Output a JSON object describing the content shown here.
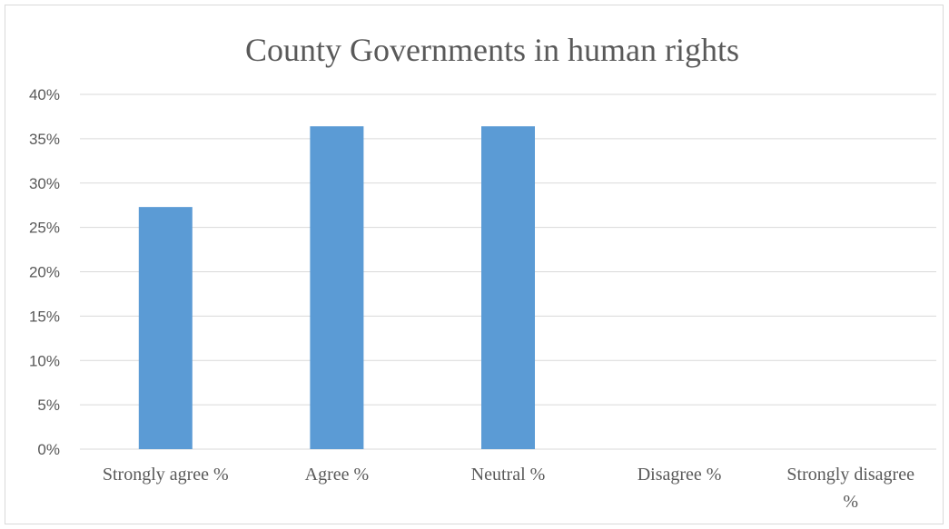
{
  "chart_data": {
    "type": "bar",
    "title": "County Governments in human rights",
    "categories": [
      "Strongly agree %",
      "Agree %",
      "Neutral %",
      "Disagree %",
      "Strongly disagree %"
    ],
    "category_label_lines": [
      [
        "Strongly agree %"
      ],
      [
        "Agree %"
      ],
      [
        "Neutral %"
      ],
      [
        "Disagree %"
      ],
      [
        "Strongly disagree",
        "%"
      ]
    ],
    "series": [
      {
        "values": [
          27.3,
          36.4,
          36.4,
          0,
          0
        ]
      }
    ],
    "y_ticks": [
      "0%",
      "5%",
      "10%",
      "15%",
      "20%",
      "25%",
      "30%",
      "35%",
      "40%"
    ],
    "ylim": [
      0,
      40
    ],
    "xlabel": "",
    "ylabel": "",
    "grid": true,
    "legend": "none",
    "colors": {
      "bar": "#5b9bd5",
      "grid": "#d9d9d9",
      "text": "#595959"
    }
  }
}
